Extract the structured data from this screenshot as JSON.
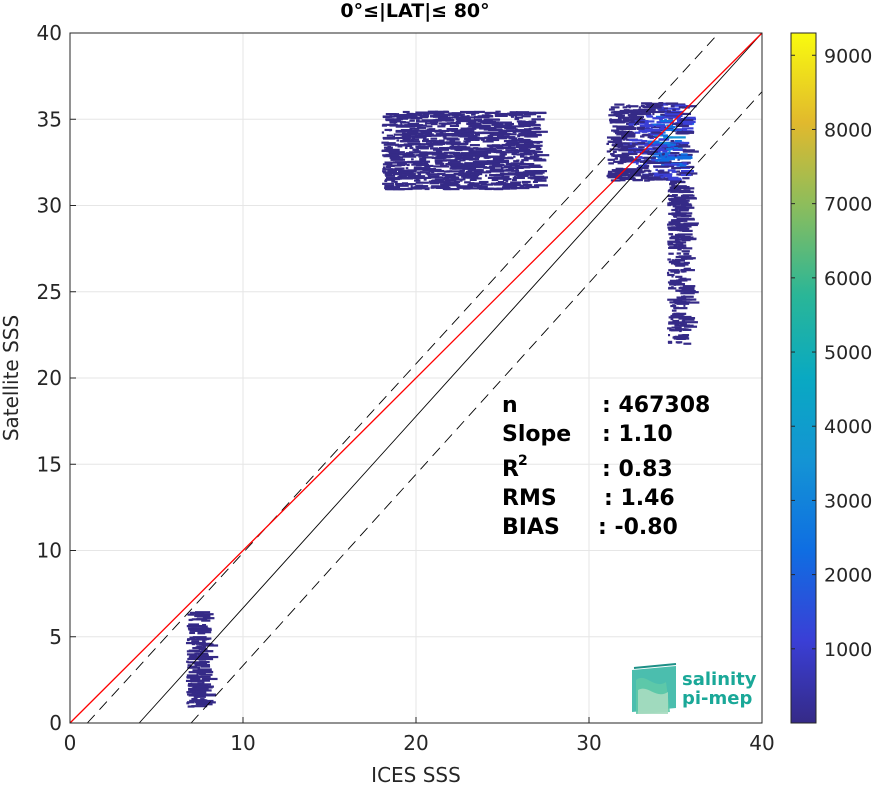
{
  "chart_data": {
    "type": "heatmap",
    "title": "0°≤|LAT|≤ 80°",
    "xlabel": "ICES SSS",
    "ylabel": "Satellite SSS",
    "xlim": [
      0,
      40
    ],
    "ylim": [
      0,
      40
    ],
    "x_ticks": [
      0,
      10,
      20,
      30,
      40
    ],
    "y_ticks": [
      0,
      5,
      10,
      15,
      20,
      25,
      30,
      35,
      40
    ],
    "grid": true,
    "colorbar": {
      "colormap": "parula",
      "range": [
        0,
        9300
      ],
      "ticks": [
        1000,
        2000,
        3000,
        4000,
        5000,
        6000,
        7000,
        8000,
        9000
      ]
    },
    "lines": [
      {
        "role": "identity",
        "color": "#000000",
        "style": "solid",
        "points": [
          [
            4,
            0
          ],
          [
            40,
            40
          ]
        ]
      },
      {
        "role": "upper-envelope",
        "color": "#000000",
        "style": "dashed",
        "points": [
          [
            1,
            0
          ],
          [
            37.5,
            40
          ]
        ]
      },
      {
        "role": "lower-envelope",
        "color": "#000000",
        "style": "dashed",
        "points": [
          [
            7,
            0
          ],
          [
            40,
            36.6
          ]
        ]
      },
      {
        "role": "regression",
        "color": "#ff0000",
        "style": "solid",
        "points": [
          [
            0,
            0
          ],
          [
            40,
            40
          ]
        ]
      }
    ],
    "density_clusters": [
      {
        "x_range": [
          31.0,
          35.5
        ],
        "y_range": [
          31.5,
          36.0
        ],
        "peak_count": 5500
      },
      {
        "x_range": [
          34.5,
          35.5
        ],
        "y_range": [
          22.0,
          31.5
        ],
        "peak_count": 400
      },
      {
        "x_range": [
          6.7,
          7.7
        ],
        "y_range": [
          1.0,
          6.5
        ],
        "peak_count": 300
      },
      {
        "x_range": [
          18.0,
          27.0
        ],
        "y_range": [
          31.0,
          35.5
        ],
        "peak_count": 100
      }
    ],
    "stats": [
      {
        "label": "n",
        "value": ": 467308"
      },
      {
        "label": "Slope",
        "value": ": 1.10"
      },
      {
        "label": "R",
        "sup": "2",
        "value": ": 0.83"
      },
      {
        "label": "RMS",
        "value": ": 1.46"
      },
      {
        "label": "BIAS",
        "value": ": -0.80"
      }
    ]
  },
  "logo": {
    "line1": "salinity",
    "line2": "pi-mep",
    "color": "#1aa898"
  }
}
